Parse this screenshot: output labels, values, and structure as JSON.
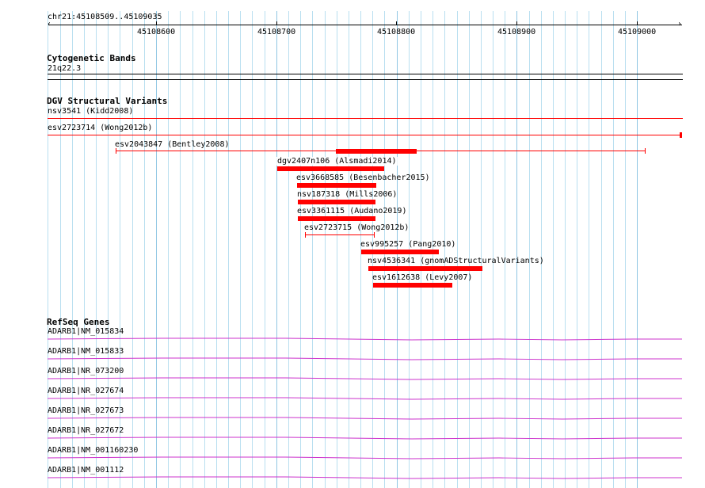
{
  "ruler": {
    "location": "chr21:45108509..45109035",
    "ticks": [
      "45108600",
      "45108700",
      "45108800",
      "45108900",
      "45109000"
    ]
  },
  "cytoband": {
    "title": "Cytogenetic Bands",
    "band": "21q22.3"
  },
  "dgv": {
    "title": "DGV Structural Variants",
    "variants": [
      "nsv3541 (Kidd2008)",
      "esv2723714 (Wong2012b)",
      "esv2043847 (Bentley2008)",
      "dgv2407n106 (Alsmadi2014)",
      "esv3668585 (Besenbacher2015)",
      "nsv187318 (Mills2006)",
      "esv3361115 (Audano2019)",
      "esv2723715 (Wong2012b)",
      "esv995257 (Pang2010)",
      "nsv4536341 (gnomADStructuralVariants)",
      "esv1612638 (Levy2007)"
    ]
  },
  "refseq": {
    "title": "RefSeq Genes",
    "genes": [
      "ADARB1|NM_015834",
      "ADARB1|NM_015833",
      "ADARB1|NR_073200",
      "ADARB1|NR_027674",
      "ADARB1|NR_027673",
      "ADARB1|NR_027672",
      "ADARB1|NM_001160230",
      "ADARB1|NM_001112"
    ]
  },
  "colors": {
    "variant": "#ff0000",
    "gene": "#cc33cc",
    "grid": "#b9dff0"
  }
}
